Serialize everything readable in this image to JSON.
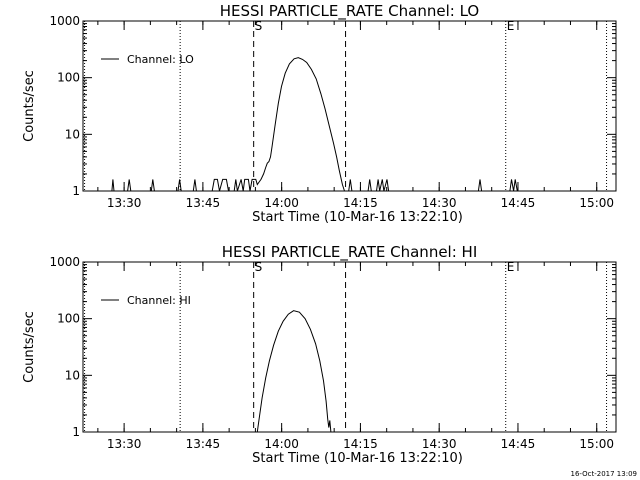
{
  "footer": {
    "timestamp": "16-Oct-2017 13:09"
  },
  "chart_data": [
    {
      "type": "line",
      "title": "HESSI PARTICLE_RATE Channel: LO",
      "xlabel": "Start Time (10-Mar-16 13:22:10)",
      "ylabel": "Counts/sec",
      "x_unit": "minutes after 13:22:10",
      "xlim": [
        0,
        101.5
      ],
      "ylim": [
        1,
        1000
      ],
      "y_scale": "log",
      "grid": false,
      "x_ticks": [
        "13:30",
        "13:45",
        "14:00",
        "14:15",
        "14:30",
        "14:45",
        "15:00"
      ],
      "x_tick_values": [
        7.83,
        22.83,
        37.83,
        52.83,
        67.83,
        82.83,
        97.83
      ],
      "y_ticks": [
        "1",
        "10",
        "100",
        "1000"
      ],
      "y_tick_values": [
        1,
        10,
        100,
        1000
      ],
      "legend": {
        "position": "top-left",
        "entries": [
          "Channel: LO"
        ]
      },
      "series": [
        {
          "name": "Channel: LO",
          "points": [
            [
              0,
              1
            ],
            [
              5.5,
              1
            ],
            [
              5.7,
              1.6
            ],
            [
              5.9,
              1
            ],
            [
              8.5,
              1
            ],
            [
              8.8,
              1.6
            ],
            [
              9.1,
              1
            ],
            [
              13,
              1
            ],
            [
              13.3,
              1.6
            ],
            [
              13.6,
              1
            ],
            [
              18.1,
              1
            ],
            [
              18.4,
              1.6
            ],
            [
              18.7,
              1
            ],
            [
              21,
              1
            ],
            [
              21.3,
              1.6
            ],
            [
              21.6,
              1
            ],
            [
              24.6,
              1
            ],
            [
              25,
              1.6
            ],
            [
              25.6,
              1.6
            ],
            [
              26,
              1
            ],
            [
              26.6,
              1.6
            ],
            [
              27.3,
              1.6
            ],
            [
              27.7,
              1
            ],
            [
              28.8,
              1
            ],
            [
              29.1,
              1.6
            ],
            [
              29.4,
              1
            ],
            [
              30.1,
              1.6
            ],
            [
              30.5,
              1
            ],
            [
              30.8,
              1.6
            ],
            [
              31.5,
              1.6
            ],
            [
              31.8,
              1
            ],
            [
              32.2,
              1.6
            ],
            [
              32.9,
              1.6
            ],
            [
              33.2,
              1.3
            ],
            [
              33.9,
              1.6
            ],
            [
              34.4,
              2
            ],
            [
              34.8,
              2.6
            ],
            [
              35.1,
              3.1
            ],
            [
              35.4,
              3.3
            ],
            [
              35.7,
              4
            ],
            [
              36,
              6
            ],
            [
              36.6,
              15
            ],
            [
              37.2,
              35
            ],
            [
              37.8,
              70
            ],
            [
              38.5,
              120
            ],
            [
              39.3,
              175
            ],
            [
              40.2,
              215
            ],
            [
              41,
              225
            ],
            [
              41.8,
              210
            ],
            [
              42.6,
              185
            ],
            [
              43.5,
              140
            ],
            [
              44.4,
              95
            ],
            [
              45.3,
              52
            ],
            [
              46.1,
              28
            ],
            [
              46.9,
              14
            ],
            [
              47.7,
              7
            ],
            [
              48.3,
              4
            ],
            [
              48.8,
              2.3
            ],
            [
              49.4,
              1.3
            ],
            [
              49.8,
              1
            ],
            [
              50.6,
              1
            ],
            [
              50.9,
              1.6
            ],
            [
              51.2,
              1
            ],
            [
              54.3,
              1
            ],
            [
              54.6,
              1.6
            ],
            [
              54.9,
              1
            ],
            [
              55.9,
              1
            ],
            [
              56.2,
              1.6
            ],
            [
              56.5,
              1
            ],
            [
              57,
              1.6
            ],
            [
              57.3,
              1
            ],
            [
              57.9,
              1.6
            ],
            [
              58.2,
              1
            ],
            [
              75.3,
              1
            ],
            [
              75.6,
              1.6
            ],
            [
              75.9,
              1
            ],
            [
              81.3,
              1
            ],
            [
              81.6,
              1.6
            ],
            [
              82,
              1
            ],
            [
              82.3,
              1.6
            ],
            [
              82.7,
              1
            ],
            [
              101.5,
              1
            ]
          ]
        }
      ],
      "annotations": [
        {
          "text": "S",
          "x": 32.5,
          "line": "dashed"
        },
        {
          "text": "",
          "x": 50.0,
          "line": "dashed"
        },
        {
          "text": "E",
          "x": 80.5,
          "line": "dotted"
        },
        {
          "text": "",
          "x": 18.5,
          "line": "dotted"
        },
        {
          "text": "",
          "x": 99.7,
          "line": "dotted"
        },
        {
          "text": "",
          "x": 0.3,
          "line": "dotted"
        }
      ]
    },
    {
      "type": "line",
      "title": "HESSI PARTICLE_RATE Channel: HI",
      "xlabel": "Start Time (10-Mar-16 13:22:10)",
      "ylabel": "Counts/sec",
      "x_unit": "minutes after 13:22:10",
      "xlim": [
        0,
        101.5
      ],
      "ylim": [
        1,
        1000
      ],
      "y_scale": "log",
      "grid": false,
      "x_ticks": [
        "13:30",
        "13:45",
        "14:00",
        "14:15",
        "14:30",
        "14:45",
        "15:00"
      ],
      "x_tick_values": [
        7.83,
        22.83,
        37.83,
        52.83,
        67.83,
        82.83,
        97.83
      ],
      "y_ticks": [
        "1",
        "10",
        "100",
        "1000"
      ],
      "y_tick_values": [
        1,
        10,
        100,
        1000
      ],
      "legend": {
        "position": "top-left",
        "entries": [
          "Channel: HI"
        ]
      },
      "series": [
        {
          "name": "Channel: HI",
          "points": [
            [
              33.2,
              1
            ],
            [
              33.5,
              1.6
            ],
            [
              34.1,
              4
            ],
            [
              34.8,
              9
            ],
            [
              35.5,
              18
            ],
            [
              36.3,
              34
            ],
            [
              37.2,
              60
            ],
            [
              38.1,
              90
            ],
            [
              39.1,
              120
            ],
            [
              40.1,
              138
            ],
            [
              41.2,
              130
            ],
            [
              42.3,
              100
            ],
            [
              43.3,
              65
            ],
            [
              44.3,
              36
            ],
            [
              45.1,
              18
            ],
            [
              45.8,
              8
            ],
            [
              46.3,
              3.5
            ],
            [
              46.6,
              1.7
            ],
            [
              46.8,
              1.2
            ],
            [
              47.0,
              1.6
            ],
            [
              47.2,
              1
            ]
          ]
        }
      ],
      "annotations": [
        {
          "text": "S",
          "x": 32.5,
          "line": "dashed"
        },
        {
          "text": "",
          "x": 50.0,
          "line": "dashed"
        },
        {
          "text": "E",
          "x": 80.5,
          "line": "dotted"
        },
        {
          "text": "",
          "x": 18.5,
          "line": "dotted"
        },
        {
          "text": "",
          "x": 99.7,
          "line": "dotted"
        },
        {
          "text": "",
          "x": 0.3,
          "line": "dotted"
        }
      ]
    }
  ]
}
